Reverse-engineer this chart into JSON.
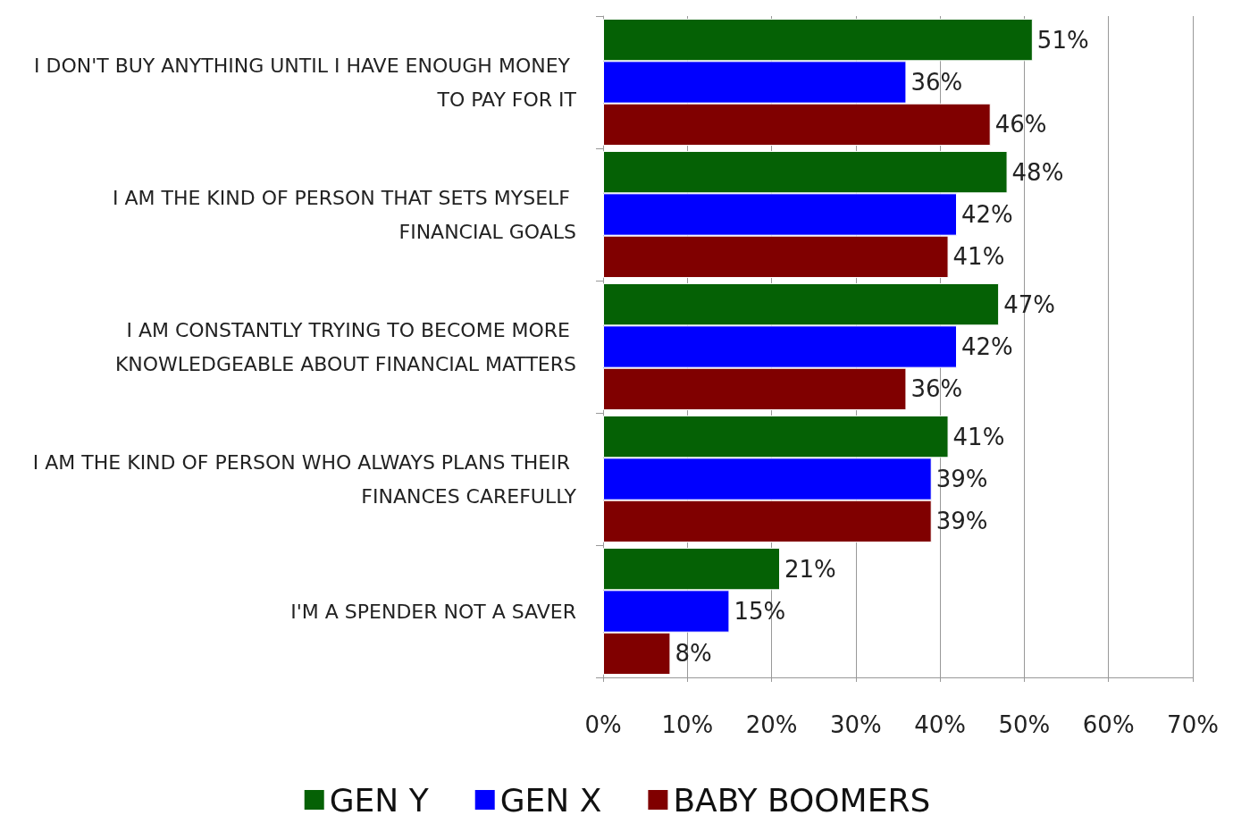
{
  "chart_data": {
    "type": "bar",
    "orientation": "horizontal",
    "categories": [
      "I DON'T BUY ANYTHING UNTIL I HAVE ENOUGH MONEY TO PAY FOR IT",
      "I AM THE KIND OF PERSON THAT SETS MYSELF FINANCIAL GOALS",
      "I AM CONSTANTLY TRYING TO BECOME MORE KNOWLEDGEABLE ABOUT FINANCIAL MATTERS",
      "I AM THE KIND OF PERSON WHO ALWAYS PLANS THEIR FINANCES CAREFULLY",
      "I'M A SPENDER NOT A SAVER"
    ],
    "series": [
      {
        "name": "GEN Y",
        "color": "#056105",
        "values": [
          51,
          48,
          47,
          41,
          21
        ],
        "value_labels": [
          "51%",
          "48%",
          "47%",
          "41%",
          "21%"
        ]
      },
      {
        "name": "GEN X",
        "color": "#0000ff",
        "values": [
          36,
          42,
          42,
          39,
          15
        ],
        "value_labels": [
          "36%",
          "42%",
          "42%",
          "39%",
          "15%"
        ]
      },
      {
        "name": "BABY BOOMERS",
        "color": "#800000",
        "values": [
          46,
          41,
          36,
          39,
          8
        ],
        "value_labels": [
          "46%",
          "41%",
          "36%",
          "39%",
          "8%"
        ]
      }
    ],
    "xlim": [
      0,
      70
    ],
    "xticks": [
      {
        "value": 0,
        "label": "0%"
      },
      {
        "value": 10,
        "label": "10%"
      },
      {
        "value": 20,
        "label": "20%"
      },
      {
        "value": 30,
        "label": "30%"
      },
      {
        "value": 40,
        "label": "40%"
      },
      {
        "value": 50,
        "label": "50%"
      },
      {
        "value": 60,
        "label": "60%"
      },
      {
        "value": 70,
        "label": "70%"
      }
    ],
    "grid": "x",
    "legend": "bottom"
  }
}
